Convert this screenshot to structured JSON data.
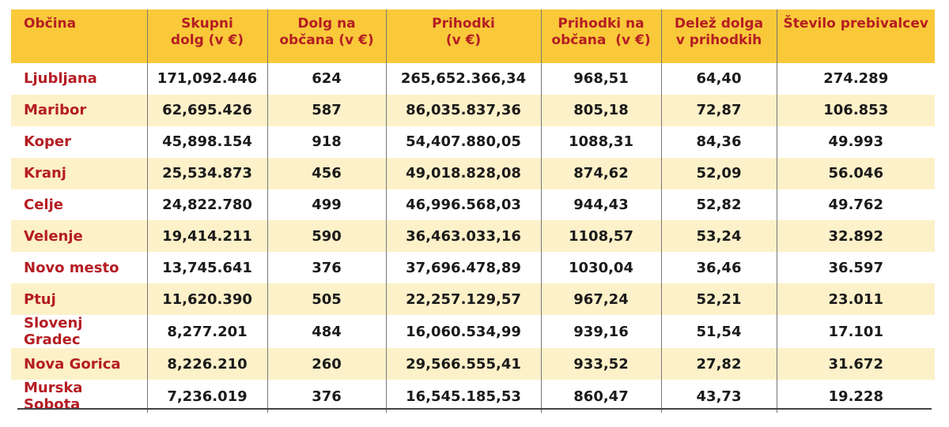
{
  "columns": [
    "Občina",
    "Skupni dolg (v €)",
    "Dolg na občana (v €)",
    "Prihodki (v €)",
    "Prihodki na občana  (v €)",
    "Delež dolga v prihodkih",
    "Število prebivalcev"
  ],
  "rows": [
    [
      "Ljubljana",
      "171,092.446",
      "624",
      "265,652.366,34",
      "968,51",
      "64,40",
      "274.289"
    ],
    [
      "Maribor",
      "62,695.426",
      "587",
      "86,035.837,36",
      "805,18",
      "72,87",
      "106.853"
    ],
    [
      "Koper",
      "45,898.154",
      "918",
      "54,407.880,05",
      "1088,31",
      "84,36",
      "49.993"
    ],
    [
      "Kranj",
      "25,534.873",
      "456",
      "49,018.828,08",
      "874,62",
      "52,09",
      "56.046"
    ],
    [
      "Celje",
      "24,822.780",
      "499",
      "46,996.568,03",
      "944,43",
      "52,82",
      "49.762"
    ],
    [
      "Velenje",
      "19,414.211",
      "590",
      "36,463.033,16",
      "1108,57",
      "53,24",
      "32.892"
    ],
    [
      "Novo mesto",
      "13,745.641",
      "376",
      "37,696.478,89",
      "1030,04",
      "36,46",
      "36.597"
    ],
    [
      "Ptuj",
      "11,620.390",
      "505",
      "22,257.129,57",
      "967,24",
      "52,21",
      "23.011"
    ],
    [
      "Slovenj Gradec",
      "8,277.201",
      "484",
      "16,060.534,99",
      "939,16",
      "51,54",
      "17.101"
    ],
    [
      "Nova Gorica",
      "8,226.210",
      "260",
      "29,566.555,41",
      "933,52",
      "27,82",
      "31.672"
    ],
    [
      "Murska Sobota",
      "7,236.019",
      "376",
      "16,545.185,53",
      "860,47",
      "43,73",
      "19.228"
    ]
  ],
  "colors": {
    "header_bg": "#f9c93a",
    "header_text": "#b51d23",
    "row_shade": "#fdf1c9",
    "name_text": "#b51d23"
  }
}
